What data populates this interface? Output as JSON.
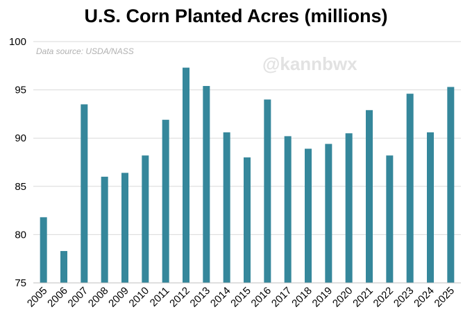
{
  "chart_data": {
    "type": "bar",
    "title": "U.S. Corn Planted Acres (millions)",
    "source_note": "Data source: USDA/NASS",
    "watermark": "@kannbwx",
    "categories": [
      "2005",
      "2006",
      "2007",
      "2008",
      "2009",
      "2010",
      "2011",
      "2012",
      "2013",
      "2014",
      "2015",
      "2016",
      "2017",
      "2018",
      "2019",
      "2020",
      "2021",
      "2022",
      "2023",
      "2024",
      "2025"
    ],
    "values": [
      81.8,
      78.3,
      93.5,
      86.0,
      86.4,
      88.2,
      91.9,
      97.3,
      95.4,
      90.6,
      88.0,
      94.0,
      90.2,
      88.9,
      89.4,
      90.5,
      92.9,
      88.2,
      94.6,
      90.6,
      95.3
    ],
    "yticks": [
      75,
      80,
      85,
      90,
      95,
      100
    ],
    "ylim": [
      75,
      100
    ],
    "bar_color": "#35879b",
    "grid_color": "#d9d9d9",
    "grid": true
  }
}
